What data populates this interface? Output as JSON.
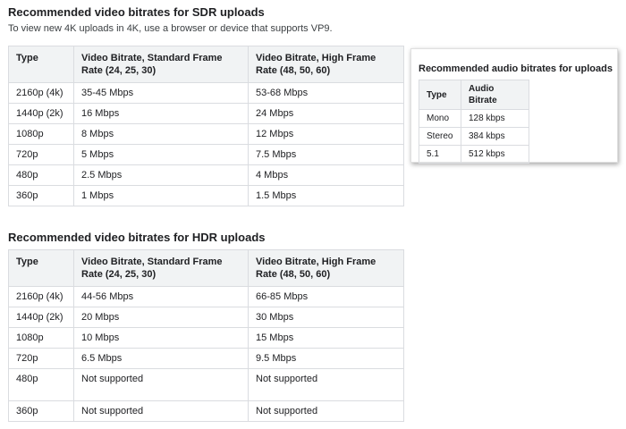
{
  "sdr": {
    "heading": "Recommended video bitrates for SDR uploads",
    "note": "To view new 4K uploads in 4K, use a browser or device that supports VP9.",
    "columns": {
      "type": "Type",
      "standard": "Video Bitrate, Standard Frame Rate (24, 25, 30)",
      "high": "Video Bitrate, High Frame Rate (48, 50, 60)"
    },
    "rows": [
      {
        "type": "2160p (4k)",
        "standard": "35-45 Mbps",
        "high": "53-68 Mbps"
      },
      {
        "type": "1440p (2k)",
        "standard": "16 Mbps",
        "high": "24 Mbps"
      },
      {
        "type": "1080p",
        "standard": "8 Mbps",
        "high": "12 Mbps"
      },
      {
        "type": "720p",
        "standard": "5 Mbps",
        "high": "7.5 Mbps"
      },
      {
        "type": "480p",
        "standard": "2.5 Mbps",
        "high": "4 Mbps"
      },
      {
        "type": "360p",
        "standard": "1 Mbps",
        "high": "1.5 Mbps"
      }
    ]
  },
  "hdr": {
    "heading": "Recommended video bitrates for HDR uploads",
    "columns": {
      "type": "Type",
      "standard": "Video Bitrate, Standard Frame Rate (24, 25, 30)",
      "high": "Video Bitrate, High Frame Rate (48, 50, 60)"
    },
    "rows": [
      {
        "type": "2160p (4k)",
        "standard": "44-56 Mbps",
        "high": "66-85 Mbps"
      },
      {
        "type": "1440p (2k)",
        "standard": "20 Mbps",
        "high": "30 Mbps"
      },
      {
        "type": "1080p",
        "standard": "10 Mbps",
        "high": "15 Mbps"
      },
      {
        "type": "720p",
        "standard": "6.5 Mbps",
        "high": "9.5 Mbps"
      },
      {
        "type": "480p",
        "standard": "Not supported",
        "high": "Not supported"
      },
      {
        "type": "360p",
        "standard": "Not supported",
        "high": "Not supported"
      }
    ]
  },
  "audio": {
    "heading": "Recommended audio bitrates for uploads",
    "columns": {
      "type": "Type",
      "bitrate": "Audio Bitrate"
    },
    "rows": [
      {
        "type": "Mono",
        "bitrate": "128 kbps"
      },
      {
        "type": "Stereo",
        "bitrate": "384 kbps"
      },
      {
        "type": "5.1",
        "bitrate": "512 kbps"
      }
    ]
  }
}
